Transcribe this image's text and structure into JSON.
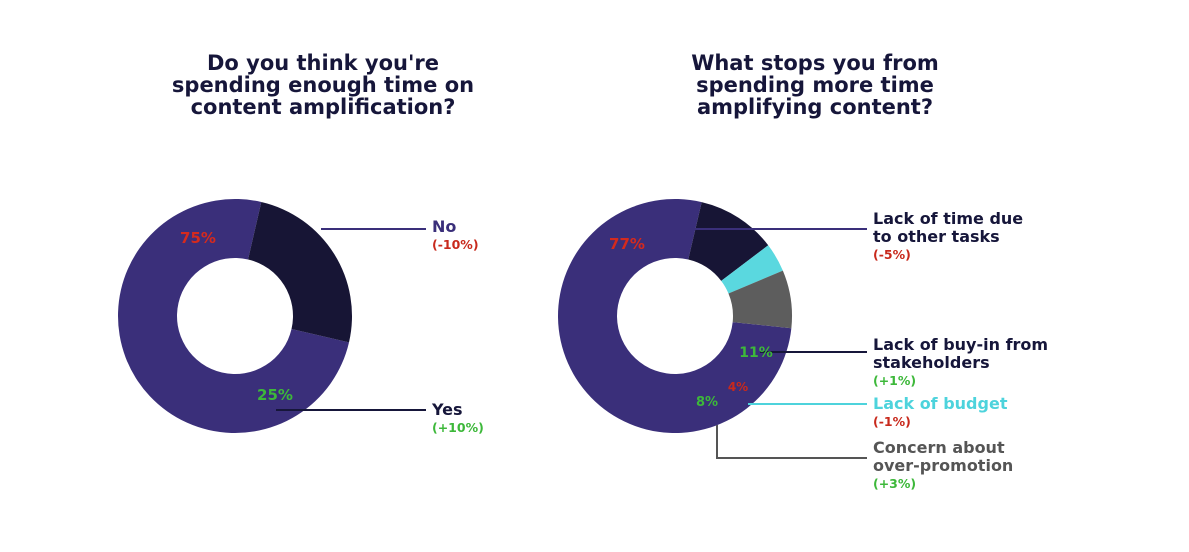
{
  "chart_data": [
    {
      "type": "pie",
      "title_lines": [
        "Do you think you're",
        "spending enough time on",
        "content amplification?"
      ],
      "slices": [
        {
          "name": "No",
          "value": 75,
          "label": "75%",
          "change": "(-10%)",
          "color": "#3a2f7a",
          "label_color": "#d42a1e",
          "name_color": "#3a2f7a",
          "change_color": "#c8291c",
          "line_color": "#3a2f7a"
        },
        {
          "name": "Yes",
          "value": 25,
          "label": "25%",
          "change": "(+10%)",
          "color": "#171535",
          "label_color": "#3db83a",
          "name_color": "#16163a",
          "change_color": "#3db83a",
          "line_color": "#16163a"
        }
      ]
    },
    {
      "type": "pie",
      "title_lines": [
        "What stops you from",
        "spending more time",
        "amplifying content?"
      ],
      "slices": [
        {
          "name_lines": [
            "Lack of time due",
            "to other tasks"
          ],
          "value": 77,
          "label": "77%",
          "change": "(-5%)",
          "color": "#3a2f7a",
          "label_color": "#d42a1e",
          "name_color": "#16163a",
          "change_color": "#c8291c",
          "line_color": "#3a2f7a"
        },
        {
          "name_lines": [
            "Lack of buy-in from",
            "stakeholders"
          ],
          "value": 11,
          "label": "11%",
          "change": "(+1%)",
          "color": "#171535",
          "label_color": "#3db83a",
          "name_color": "#16163a",
          "change_color": "#3db83a",
          "line_color": "#16163a"
        },
        {
          "name_lines": [
            "Lack of budget"
          ],
          "value": 4,
          "label": "4%",
          "change": "(-1%)",
          "color": "#5ad8df",
          "label_color": "#c8291c",
          "name_color": "#4dd3dc",
          "change_color": "#c8291c",
          "line_color": "#4dd3dc"
        },
        {
          "name_lines": [
            "Concern about",
            "over-promotion"
          ],
          "value": 8,
          "label": "8%",
          "change": "(+3%)",
          "color": "#5d5d5d",
          "label_color": "#3db83a",
          "name_color": "#555555",
          "change_color": "#3db83a",
          "line_color": "#555555"
        }
      ]
    }
  ]
}
